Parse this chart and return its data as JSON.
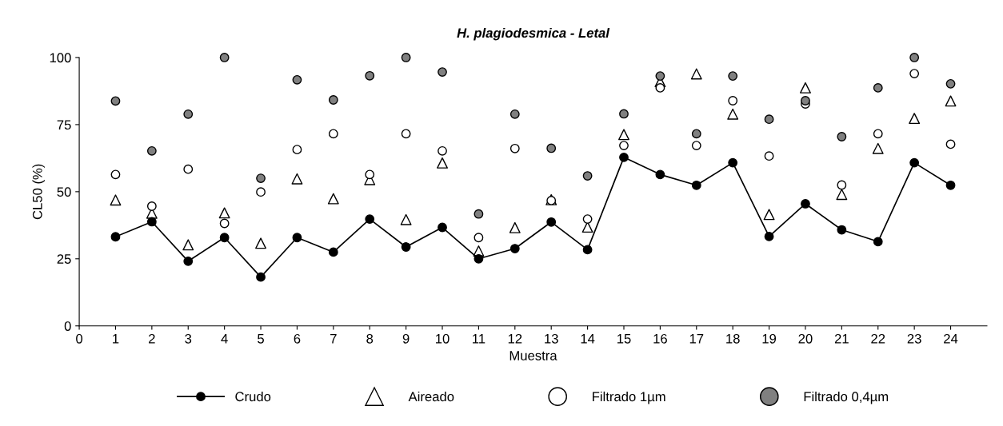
{
  "chart_data": {
    "type": "scatter",
    "title": "H. plagiodesmica - Letal",
    "xlabel": "Muestra",
    "ylabel": "CL50 (%)",
    "x": [
      1,
      2,
      3,
      4,
      5,
      6,
      7,
      8,
      9,
      10,
      11,
      12,
      13,
      14,
      15,
      16,
      17,
      18,
      19,
      20,
      21,
      22,
      23,
      24
    ],
    "series": [
      {
        "name": "Crudo",
        "type": "line",
        "marker": "circle",
        "color": "#000000",
        "values": [
          33.2,
          38.8,
          24.1,
          32.9,
          18.2,
          32.9,
          27.5,
          39.8,
          29.4,
          36.7,
          25.0,
          28.8,
          38.7,
          28.4,
          62.8,
          56.4,
          52.4,
          60.8,
          33.3,
          45.5,
          35.8,
          31.4,
          60.8,
          52.4
        ]
      },
      {
        "name": "Aireado",
        "marker": "triangle",
        "color": "#ffffff",
        "values": [
          46.9,
          42.0,
          30.2,
          42.1,
          30.8,
          54.8,
          47.4,
          54.5,
          39.6,
          60.7,
          27.9,
          36.6,
          47.0,
          36.8,
          71.3,
          91.0,
          93.9,
          78.9,
          41.5,
          88.7,
          49.0,
          66.1,
          77.3,
          83.8
        ]
      },
      {
        "name": "Filtrado 1µm",
        "marker": "circle",
        "color": "#ffffff",
        "values": [
          56.4,
          44.6,
          58.4,
          38.2,
          49.9,
          65.7,
          71.6,
          56.4,
          71.6,
          65.2,
          32.9,
          66.1,
          46.7,
          39.8,
          67.2,
          88.7,
          67.2,
          83.9,
          63.3,
          82.7,
          52.5,
          71.6,
          94.0,
          67.7
        ]
      },
      {
        "name": "Filtrado 0,4µm",
        "marker": "circle",
        "color": "#808080",
        "values": [
          83.8,
          65.2,
          78.9,
          100,
          55.0,
          91.7,
          84.2,
          93.2,
          100,
          94.6,
          41.7,
          78.9,
          66.2,
          55.9,
          79.0,
          93.1,
          71.6,
          93.1,
          77.0,
          83.9,
          70.5,
          88.7,
          100,
          90.2
        ]
      }
    ],
    "xlim": [
      0,
      25
    ],
    "xticks": [
      0,
      1,
      2,
      3,
      4,
      5,
      6,
      7,
      8,
      9,
      10,
      11,
      12,
      13,
      14,
      15,
      16,
      17,
      18,
      19,
      20,
      21,
      22,
      23,
      24
    ],
    "ylim": [
      0,
      100
    ],
    "yticks": [
      0,
      25,
      50,
      75,
      100
    ],
    "legend": "bottom"
  }
}
